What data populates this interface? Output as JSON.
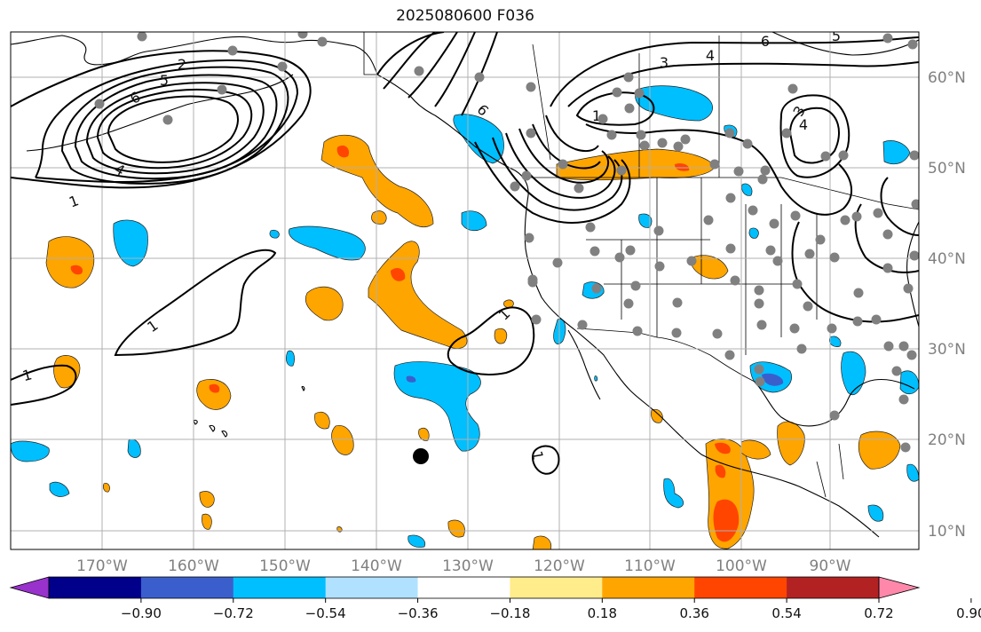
{
  "title": "2025080600 F036",
  "map": {
    "longitude_labels": [
      "170°W",
      "160°W",
      "150°W",
      "140°W",
      "130°W",
      "120°W",
      "110°W",
      "100°W",
      "90°W"
    ],
    "latitude_labels": [
      "60°N",
      "50°N",
      "40°N",
      "30°N",
      "20°N",
      "10°N"
    ]
  },
  "contour_labels": [
    "1",
    "2",
    "3",
    "4",
    "5",
    "6"
  ],
  "colorbar": {
    "ticks": [
      "−0.90",
      "−0.72",
      "−0.54",
      "−0.36",
      "−0.18",
      "0.18",
      "0.36",
      "0.54",
      "0.72",
      "0.90"
    ],
    "colors": [
      "#9932CC",
      "#00008B",
      "#3A5FCD",
      "#00BFFF",
      "#B0E2FF",
      "#FFFFFF",
      "#FFEC8B",
      "#FFA500",
      "#FF4500",
      "#B22222",
      "#FF88AA"
    ]
  },
  "colors": {
    "positive_light": "#FFEC8B",
    "positive": "#FFA500",
    "positive_strong": "#FF4500",
    "negative_light": "#B0E2FF",
    "negative": "#00BFFF",
    "negative_strong": "#3A5FCD",
    "station_dot": "#808080",
    "grid": "#b0b0b0"
  }
}
